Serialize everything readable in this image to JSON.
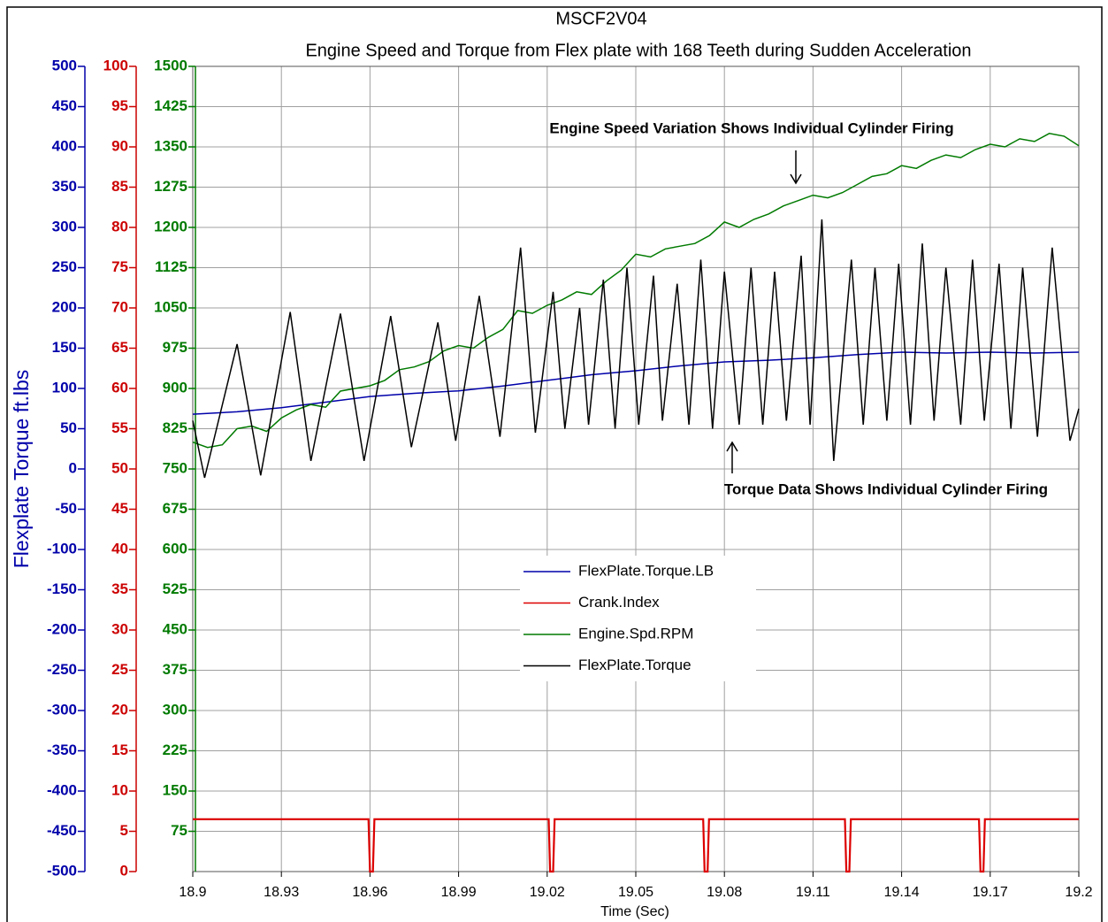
{
  "chart_data": {
    "type": "line",
    "title": "MSCF2V04",
    "subtitle": "Engine Speed and Torque from Flex plate with 168 Teeth during Sudden Acceleration",
    "y_label": "Flexplate Torque ft.lbs",
    "x_label": "Time (Sec)",
    "xlim": [
      18.9,
      19.2
    ],
    "xticks": [
      18.9,
      18.93,
      18.96,
      18.99,
      19.02,
      19.05,
      19.08,
      19.11,
      19.14,
      19.17,
      19.2
    ],
    "ylim": [
      -500,
      500
    ],
    "yticks": [
      -500,
      -450,
      -400,
      -350,
      -300,
      -250,
      -200,
      -150,
      -100,
      -50,
      0,
      50,
      100,
      150,
      200,
      250,
      300,
      350,
      400,
      450,
      500
    ],
    "y2lim": [
      0,
      100
    ],
    "y2ticks": [
      0,
      5,
      10,
      15,
      20,
      25,
      30,
      35,
      40,
      45,
      50,
      55,
      60,
      65,
      70,
      75,
      80,
      85,
      90,
      95,
      100
    ],
    "y3lim": [
      0,
      1500
    ],
    "y3ticks": [
      75,
      150,
      225,
      300,
      375,
      450,
      525,
      600,
      675,
      750,
      825,
      900,
      975,
      1050,
      1125,
      1200,
      1275,
      1350,
      1425,
      1500
    ],
    "axis_colors": {
      "y": "#0000aa",
      "y2": "#cc0000",
      "y3": "#007a00"
    },
    "grid": true,
    "legend_position": "center",
    "annotations": [
      {
        "text": "Engine Speed Variation Shows Individual Cylinder Firing"
      },
      {
        "text": "Torque Data Shows Individual Cylinder Firing"
      }
    ],
    "series": [
      {
        "name": "FlexPlate.Torque.LB",
        "color": "#0000aa",
        "axis": "y",
        "x": [
          18.9,
          18.915,
          18.93,
          18.945,
          18.96,
          18.975,
          18.99,
          19.005,
          19.02,
          19.035,
          19.05,
          19.065,
          19.08,
          19.095,
          19.11,
          19.125,
          19.14,
          19.155,
          19.17,
          19.185,
          19.2
        ],
        "values": [
          68,
          71,
          76,
          83,
          90,
          94,
          97,
          103,
          110,
          117,
          122,
          128,
          133,
          135,
          138,
          142,
          145,
          144,
          145,
          144,
          145
        ]
      },
      {
        "name": "Crank.Index",
        "color": "#dd0000",
        "axis": "y2",
        "x": [
          18.9,
          18.9595,
          18.96,
          18.961,
          18.9615,
          19.0205,
          19.021,
          19.022,
          19.0225,
          19.0728,
          19.0733,
          19.0743,
          19.0748,
          19.1208,
          19.1213,
          19.1223,
          19.1228,
          19.1662,
          19.1667,
          19.1677,
          19.1682,
          19.2
        ],
        "values": [
          6.5,
          6.5,
          0,
          0,
          6.5,
          6.5,
          0,
          0,
          6.5,
          6.5,
          0,
          0,
          6.5,
          6.5,
          0,
          0,
          6.5,
          6.5,
          0,
          0,
          6.5,
          6.5
        ]
      },
      {
        "name": "Engine.Spd.RPM",
        "color": "#007a00",
        "axis": "y3",
        "x": [
          18.9,
          18.905,
          18.91,
          18.915,
          18.92,
          18.925,
          18.93,
          18.935,
          18.94,
          18.945,
          18.95,
          18.955,
          18.96,
          18.965,
          18.97,
          18.975,
          18.98,
          18.985,
          18.99,
          18.995,
          19.0,
          19.005,
          19.01,
          19.015,
          19.02,
          19.025,
          19.03,
          19.035,
          19.04,
          19.045,
          19.05,
          19.055,
          19.06,
          19.065,
          19.07,
          19.075,
          19.08,
          19.085,
          19.09,
          19.095,
          19.1,
          19.105,
          19.11,
          19.115,
          19.12,
          19.125,
          19.13,
          19.135,
          19.14,
          19.145,
          19.15,
          19.155,
          19.16,
          19.165,
          19.17,
          19.175,
          19.18,
          19.185,
          19.19,
          19.195,
          19.2
        ],
        "values": [
          800,
          790,
          795,
          825,
          830,
          820,
          845,
          860,
          870,
          865,
          895,
          900,
          905,
          915,
          935,
          940,
          950,
          970,
          980,
          975,
          995,
          1010,
          1045,
          1040,
          1055,
          1065,
          1080,
          1075,
          1100,
          1120,
          1150,
          1145,
          1160,
          1165,
          1170,
          1185,
          1210,
          1200,
          1215,
          1225,
          1240,
          1250,
          1260,
          1255,
          1265,
          1280,
          1295,
          1300,
          1315,
          1310,
          1325,
          1335,
          1330,
          1345,
          1355,
          1350,
          1365,
          1360,
          1375,
          1370,
          1352
        ]
      },
      {
        "name": "FlexPlate.Torque",
        "color": "#000000",
        "axis": "y",
        "x": [
          18.9,
          18.904,
          18.915,
          18.923,
          18.933,
          18.94,
          18.95,
          18.958,
          18.967,
          18.974,
          18.983,
          18.989,
          18.997,
          19.004,
          19.011,
          19.016,
          19.022,
          19.026,
          19.031,
          19.034,
          19.039,
          19.043,
          19.047,
          19.051,
          19.056,
          19.059,
          19.064,
          19.068,
          19.072,
          19.076,
          19.08,
          19.085,
          19.089,
          19.093,
          19.097,
          19.101,
          19.106,
          19.109,
          19.113,
          19.117,
          19.123,
          19.127,
          19.131,
          19.135,
          19.139,
          19.143,
          19.147,
          19.151,
          19.155,
          19.16,
          19.164,
          19.168,
          19.173,
          19.177,
          19.181,
          19.186,
          19.191,
          19.197,
          19.2
        ],
        "values": [
          60,
          -11,
          155,
          -8,
          195,
          10,
          193,
          10,
          190,
          27,
          182,
          35,
          215,
          40,
          275,
          45,
          220,
          50,
          200,
          55,
          235,
          50,
          250,
          55,
          240,
          60,
          230,
          55,
          260,
          50,
          245,
          55,
          250,
          55,
          245,
          60,
          265,
          55,
          310,
          10,
          260,
          55,
          250,
          60,
          255,
          55,
          280,
          60,
          250,
          55,
          260,
          60,
          255,
          50,
          250,
          40,
          275,
          35,
          75
        ]
      }
    ]
  }
}
